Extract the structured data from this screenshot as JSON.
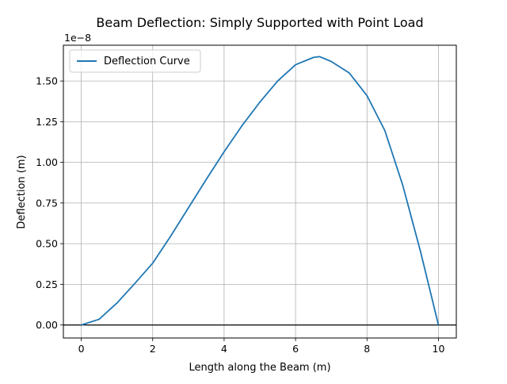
{
  "chart_data": {
    "type": "line",
    "title": "Beam Deflection: Simply Supported with Point Load",
    "xlabel": "Length along the Beam (m)",
    "ylabel": "Deflection (m)",
    "y_scale_label": "1e−8",
    "xlim": [
      -0.5,
      10.5
    ],
    "ylim": [
      -0.08,
      1.72
    ],
    "y_scale": 1e-08,
    "xticks": [
      0,
      2,
      4,
      6,
      8,
      10
    ],
    "xtick_labels": [
      "0",
      "2",
      "4",
      "6",
      "8",
      "10"
    ],
    "yticks": [
      0.0,
      0.25,
      0.5,
      0.75,
      1.0,
      1.25,
      1.5
    ],
    "ytick_labels": [
      "0.00",
      "0.25",
      "0.50",
      "0.75",
      "1.00",
      "1.25",
      "1.50"
    ],
    "grid": true,
    "legend_position": "top-left",
    "baseline_y": 0,
    "series": [
      {
        "name": "Deflection Curve",
        "color": "#1f77b4",
        "x": [
          0,
          0.5,
          1,
          1.5,
          2,
          2.5,
          3,
          3.5,
          4,
          4.5,
          5,
          5.5,
          6,
          6.5,
          6.67,
          7,
          7.5,
          8,
          8.5,
          9,
          9.5,
          10
        ],
        "y": [
          0.0,
          0.035,
          0.135,
          0.255,
          0.38,
          0.545,
          0.72,
          0.895,
          1.065,
          1.225,
          1.37,
          1.5,
          1.6,
          1.645,
          1.65,
          1.62,
          1.55,
          1.41,
          1.195,
          0.86,
          0.45,
          0.0
        ]
      }
    ]
  }
}
